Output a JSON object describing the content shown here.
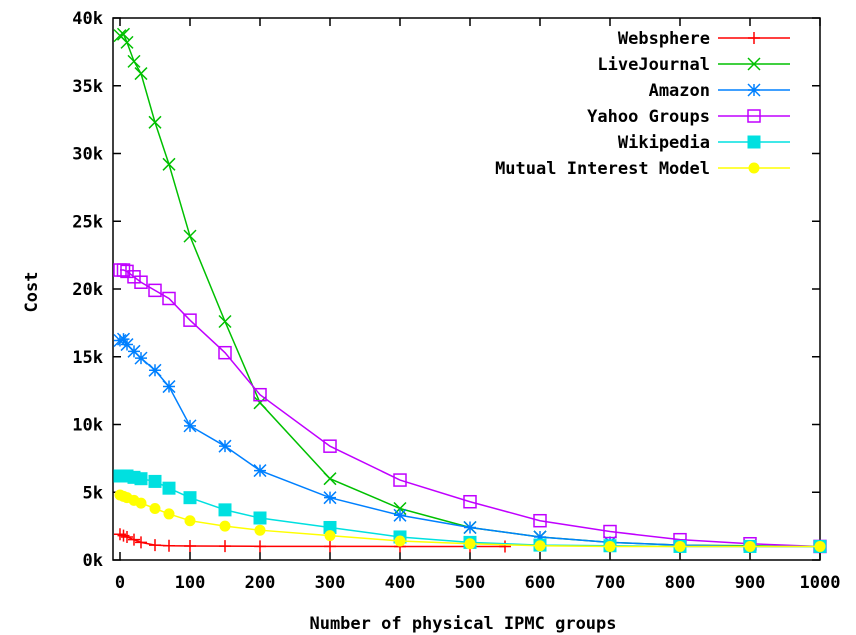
{
  "chart_data": {
    "type": "line",
    "title": "",
    "xlabel": "Number of physical IPMC groups",
    "ylabel": "Cost",
    "xlim": [
      -10,
      1000
    ],
    "ylim": [
      0,
      40000
    ],
    "xticks": [
      0,
      100,
      200,
      300,
      400,
      500,
      600,
      700,
      800,
      900,
      1000
    ],
    "xtick_labels": [
      "0",
      "100",
      "200",
      "300",
      "400",
      "500",
      "600",
      "700",
      "800",
      "900",
      "1000"
    ],
    "yticks": [
      0,
      5000,
      10000,
      15000,
      20000,
      25000,
      30000,
      35000,
      40000
    ],
    "ytick_labels": [
      "0k",
      "5k",
      "10k",
      "15k",
      "20k",
      "25k",
      "30k",
      "35k",
      "40k"
    ],
    "grid": false,
    "legend_position": "top-right",
    "series": [
      {
        "name": "Websphere",
        "color": "#ff0000",
        "marker": "plus",
        "x": [
          0,
          5,
          10,
          20,
          30,
          50,
          70,
          100,
          150,
          200,
          300,
          400,
          500,
          550
        ],
        "y": [
          1900,
          1800,
          1700,
          1500,
          1300,
          1100,
          1050,
          1030,
          1020,
          1010,
          1005,
          1000,
          1000,
          1000
        ]
      },
      {
        "name": "LiveJournal",
        "color": "#00c000",
        "marker": "x",
        "x": [
          0,
          5,
          10,
          20,
          30,
          50,
          70,
          100,
          150,
          200,
          300,
          400,
          500,
          600,
          700,
          800,
          900,
          1000
        ],
        "y": [
          38700,
          38800,
          38200,
          36800,
          35900,
          32300,
          29200,
          23900,
          17600,
          11600,
          6000,
          3800,
          2400,
          1700,
          1300,
          1100,
          1050,
          1000
        ]
      },
      {
        "name": "Amazon",
        "color": "#0080ff",
        "marker": "star",
        "x": [
          0,
          5,
          10,
          20,
          30,
          50,
          70,
          100,
          150,
          200,
          300,
          400,
          500,
          600,
          700,
          800,
          900,
          1000
        ],
        "y": [
          16200,
          16300,
          15900,
          15400,
          14900,
          14000,
          12800,
          9900,
          8400,
          6600,
          4600,
          3300,
          2400,
          1700,
          1300,
          1100,
          1000,
          1000
        ]
      },
      {
        "name": "Yahoo Groups",
        "color": "#c000ff",
        "marker": "square-open",
        "x": [
          0,
          5,
          10,
          20,
          30,
          50,
          70,
          100,
          150,
          200,
          300,
          400,
          500,
          600,
          700,
          800,
          900,
          1000
        ],
        "y": [
          21400,
          21400,
          21300,
          20900,
          20500,
          19900,
          19300,
          17700,
          15300,
          12200,
          8400,
          5900,
          4300,
          2900,
          2100,
          1500,
          1200,
          1000
        ]
      },
      {
        "name": "Wikipedia",
        "color": "#00e0e0",
        "marker": "square-filled",
        "x": [
          0,
          5,
          10,
          20,
          30,
          50,
          70,
          100,
          150,
          200,
          300,
          400,
          500,
          600,
          700,
          800,
          900,
          1000
        ],
        "y": [
          6200,
          6200,
          6200,
          6100,
          6000,
          5800,
          5300,
          4600,
          3700,
          3100,
          2400,
          1700,
          1300,
          1100,
          1050,
          1000,
          1000,
          1000
        ]
      },
      {
        "name": "Mutual Interest Model",
        "color": "#ffff00",
        "marker": "circle-filled",
        "x": [
          0,
          5,
          10,
          20,
          30,
          50,
          70,
          100,
          150,
          200,
          300,
          400,
          500,
          600,
          700,
          800,
          900,
          1000
        ],
        "y": [
          4800,
          4700,
          4600,
          4400,
          4200,
          3800,
          3400,
          2900,
          2500,
          2200,
          1800,
          1400,
          1200,
          1050,
          1000,
          1000,
          1000,
          1000
        ]
      }
    ]
  }
}
